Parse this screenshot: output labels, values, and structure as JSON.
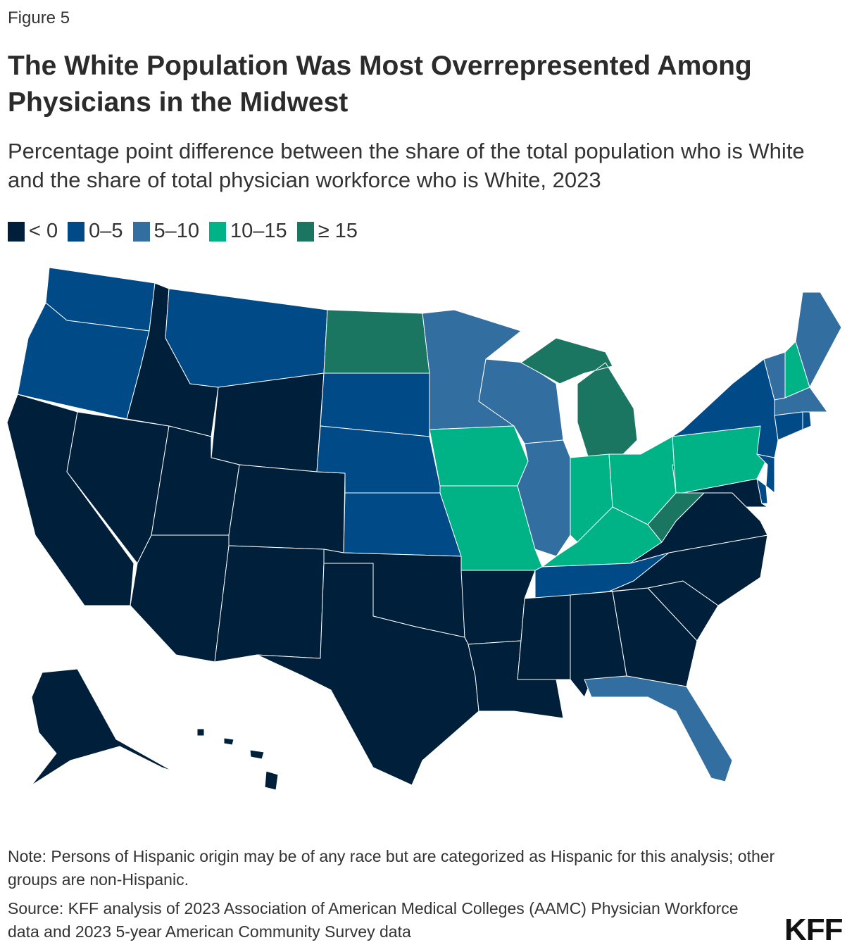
{
  "figure_label": "Figure 5",
  "title": "The White Population Was Most Overrepresented Among Physicians in the Midwest",
  "subtitle": "Percentage point difference between the share of the total population who is White and the share of total physician workforce who is White, 2023",
  "legend": [
    {
      "label": "< 0",
      "color": "#001f3a",
      "key": "lt0"
    },
    {
      "label": "0–5",
      "color": "#004a88",
      "key": "0to5"
    },
    {
      "label": "5–10",
      "color": "#336ea0",
      "key": "5to10"
    },
    {
      "label": "10–15",
      "color": "#00b386",
      "key": "10to15"
    },
    {
      "label": "≥ 15",
      "color": "#1a7561",
      "key": "ge15"
    }
  ],
  "chart_data": {
    "type": "choropleth",
    "region": "United States",
    "states": {
      "WA": "0to5",
      "OR": "0to5",
      "CA": "lt0",
      "NV": "lt0",
      "ID": "lt0",
      "MT": "0to5",
      "WY": "lt0",
      "UT": "lt0",
      "CO": "lt0",
      "AZ": "lt0",
      "NM": "lt0",
      "ND": "ge15",
      "SD": "0to5",
      "NE": "0to5",
      "KS": "0to5",
      "OK": "lt0",
      "TX": "lt0",
      "MN": "5to10",
      "IA": "10to15",
      "MO": "10to15",
      "AR": "lt0",
      "LA": "lt0",
      "WI": "5to10",
      "IL": "5to10",
      "MI": "ge15",
      "IN": "10to15",
      "OH": "10to15",
      "KY": "10to15",
      "TN": "0to5",
      "MS": "lt0",
      "AL": "lt0",
      "GA": "lt0",
      "FL": "5to10",
      "SC": "lt0",
      "NC": "lt0",
      "VA": "lt0",
      "WV": "ge15",
      "PA": "10to15",
      "MD": "lt0",
      "DE": "0to5",
      "NJ": "0to5",
      "NY": "0to5",
      "VT": "5to10",
      "NH": "10to15",
      "ME": "5to10",
      "MA": "5to10",
      "CT": "0to5",
      "RI": "0to5",
      "AK": "lt0",
      "HI": "lt0"
    }
  },
  "note": "Note: Persons of Hispanic origin may be of any race but are categorized as Hispanic for this analysis; other groups are non-Hispanic.",
  "source": "Source: KFF analysis of 2023 Association of American Medical Colleges (AAMC) Physician Workforce data and 2023 5-year American Community Survey data",
  "logo": "KFF"
}
